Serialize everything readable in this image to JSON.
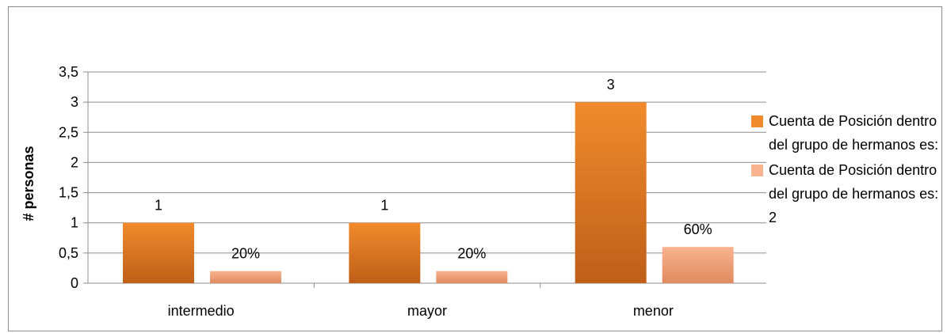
{
  "chart_data": {
    "type": "bar",
    "title": "",
    "xlabel": "",
    "ylabel": "# personas",
    "ylim": [
      0,
      3.5
    ],
    "yticks": [
      "0",
      "0,5",
      "1",
      "1,5",
      "2",
      "2,5",
      "3",
      "3,5"
    ],
    "categories": [
      "intermedio",
      "mayor",
      "menor"
    ],
    "series": [
      {
        "name": "Cuenta de Posición dentro del grupo de hermanos es:",
        "values": [
          1,
          1,
          3
        ],
        "labels": [
          "1",
          "1",
          "3"
        ],
        "color_top": "#f08a2c",
        "color_bottom": "#bf5f18"
      },
      {
        "name": "Cuenta de Posición dentro del grupo de hermanos es: 2",
        "values": [
          0.2,
          0.2,
          0.6
        ],
        "labels": [
          "20%",
          "20%",
          "60%"
        ],
        "color_top": "#f9b38f",
        "color_bottom": "#e08a5f"
      }
    ],
    "grid": true,
    "legend_position": "right"
  }
}
